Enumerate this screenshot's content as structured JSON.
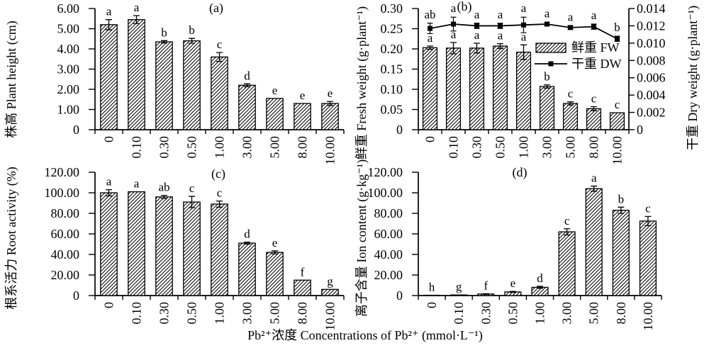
{
  "figure": {
    "xlabel": "Pb²⁺浓度 Concentrations of Pb²⁺ (mmol·L⁻¹)",
    "background": "#ffffff",
    "ink": "#000000"
  },
  "chart_data": [
    {
      "id": "a",
      "type": "bar",
      "panel_label": "(a)",
      "ylabel": "株高 Plant height (cm)",
      "ylim": [
        0,
        6
      ],
      "yticks": [
        0,
        1,
        2,
        3,
        4,
        5,
        6
      ],
      "ytick_labels": [
        "0",
        "1.00",
        "2.00",
        "3.00",
        "4.00",
        "5.00",
        "6.00"
      ],
      "categories": [
        "0",
        "0.10",
        "0.30",
        "0.50",
        "1.00",
        "3.00",
        "5.00",
        "8.00",
        "10.00"
      ],
      "series": [
        {
          "name": "株高 Plant height",
          "type": "bar",
          "axis": "left",
          "values": [
            5.2,
            5.45,
            4.35,
            4.4,
            3.6,
            2.2,
            1.55,
            1.3,
            1.3
          ],
          "errors": [
            0.25,
            0.2,
            0.06,
            0.12,
            0.22,
            0.07,
            0,
            0,
            0.1
          ],
          "letters": [
            "a",
            "a",
            "b",
            "b",
            "c",
            "d",
            "e",
            "e",
            "e"
          ]
        }
      ]
    },
    {
      "id": "b",
      "type": "bar+line",
      "panel_label": "(b)",
      "ylabel": "鲜重 Fresh weight (g·plant⁻¹)",
      "ylabel_right": "干重 Dry weight (g·plant⁻¹)",
      "ylim": [
        0,
        0.3
      ],
      "ylim_right": [
        0,
        0.014
      ],
      "yticks": [
        0,
        0.05,
        0.1,
        0.15,
        0.2,
        0.25,
        0.3
      ],
      "ytick_labels": [
        "0",
        "0.05",
        "0.10",
        "0.15",
        "0.20",
        "0.25",
        "0.30"
      ],
      "yticks_right": [
        0,
        0.002,
        0.004,
        0.006,
        0.008,
        0.01,
        0.012,
        0.014
      ],
      "ytick_labels_right": [
        "0",
        "0.002",
        "0.004",
        "0.006",
        "0.008",
        "0.010",
        "0.012",
        "0.014"
      ],
      "categories": [
        "0",
        "0.10",
        "0.30",
        "0.50",
        "1.00",
        "3.00",
        "5.00",
        "8.00",
        "10.00"
      ],
      "series": [
        {
          "name": "鲜重 FW",
          "type": "bar",
          "axis": "left",
          "values": [
            0.203,
            0.202,
            0.202,
            0.207,
            0.192,
            0.107,
            0.065,
            0.052,
            0.042
          ],
          "errors": [
            0.004,
            0.014,
            0.012,
            0.006,
            0.018,
            0.004,
            0.004,
            0.005,
            0
          ],
          "letters": [
            "a",
            "a",
            "a",
            "a",
            "a",
            "b",
            "c",
            "c",
            "c"
          ]
        },
        {
          "name": "干重 DW",
          "type": "line",
          "axis": "right",
          "values": [
            0.0117,
            0.0122,
            0.012,
            0.012,
            0.0121,
            0.0122,
            0.0118,
            0.0119,
            0.0105
          ],
          "errors": [
            0.0006,
            0.0008,
            0.0003,
            0.0003,
            0.0009,
            0.0002,
            0.0002,
            0.0003,
            0.0003
          ],
          "letters": [
            "ab",
            "a",
            "a",
            "a",
            "a",
            "a",
            "a",
            "a",
            "b"
          ]
        }
      ],
      "legend": {
        "items": [
          "鲜重 FW",
          "干重 DW"
        ],
        "position": "inside-right"
      }
    },
    {
      "id": "c",
      "type": "bar",
      "panel_label": "(c)",
      "ylabel": "根系活力 Root activity (%)",
      "ylim": [
        0,
        120
      ],
      "yticks": [
        0,
        20,
        40,
        60,
        80,
        100,
        120
      ],
      "ytick_labels": [
        "0",
        "20.00",
        "40.00",
        "60.00",
        "80.00",
        "100.00",
        "120.00"
      ],
      "categories": [
        "0",
        "0.10",
        "0.30",
        "0.50",
        "1.00",
        "3.00",
        "5.00",
        "8.00",
        "10.00"
      ],
      "series": [
        {
          "name": "根系活力 Root activity",
          "type": "bar",
          "axis": "left",
          "values": [
            100,
            101,
            96,
            91,
            89,
            51,
            42,
            15,
            6
          ],
          "errors": [
            3,
            0,
            1.5,
            5.5,
            3,
            1,
            1.5,
            0,
            0
          ],
          "letters": [
            "a",
            "a",
            "ab",
            "c",
            "c",
            "d",
            "e",
            "f",
            "g"
          ]
        }
      ]
    },
    {
      "id": "d",
      "type": "bar",
      "panel_label": "(d)",
      "ylabel": "离子含量 Ion content (g·kg⁻¹)",
      "ylim": [
        0,
        120
      ],
      "yticks": [
        0,
        20,
        40,
        60,
        80,
        100,
        120
      ],
      "ytick_labels": [
        "0",
        "20.00",
        "40.00",
        "60.00",
        "80.00",
        "100.00",
        "120.00"
      ],
      "categories": [
        "0",
        "0.10",
        "0.30",
        "0.50",
        "1.00",
        "3.00",
        "5.00",
        "8.00",
        "10.00"
      ],
      "series": [
        {
          "name": "离子含量 Ion content",
          "type": "bar",
          "axis": "left",
          "values": [
            0.3,
            0.6,
            1.5,
            3.5,
            8,
            62,
            104,
            83,
            72.5
          ],
          "errors": [
            0,
            0,
            0.3,
            0.5,
            1,
            3,
            2.5,
            3,
            4.5
          ],
          "letters": [
            "h",
            "g",
            "f",
            "e",
            "d",
            "c",
            "a",
            "b",
            "c"
          ]
        }
      ]
    }
  ]
}
